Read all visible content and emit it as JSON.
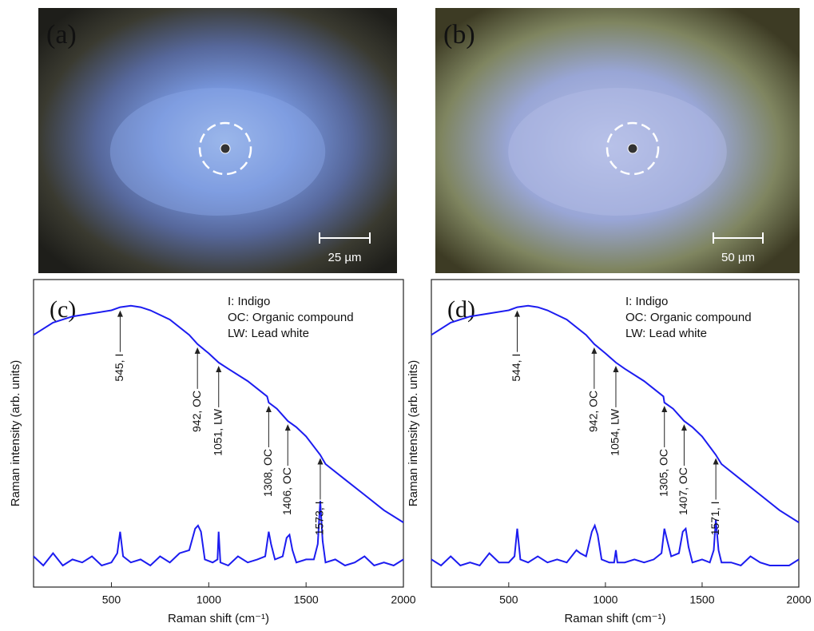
{
  "panels": [
    {
      "label": "(a)",
      "scale_bar": "25 µm"
    },
    {
      "label": "(b)",
      "scale_bar": "50 µm"
    }
  ],
  "chart_data": [
    {
      "type": "line",
      "label": "(c)",
      "xlabel": "Raman shift (cm⁻¹)",
      "ylabel": "Raman intensity (arb. units)",
      "xlim": [
        100,
        2000
      ],
      "xticks": [
        500,
        1000,
        1500,
        2000
      ],
      "ylim": [
        0,
        100
      ],
      "legend_text": [
        "I: Indigo",
        "OC: Organic compound",
        "LW: Lead white"
      ],
      "annotations": [
        {
          "text": "545, I",
          "x": 545,
          "y": 91
        },
        {
          "text": "942, OC",
          "x": 942,
          "y": 79
        },
        {
          "text": "1051, LW",
          "x": 1051,
          "y": 73
        },
        {
          "text": "1308, OC",
          "x": 1308,
          "y": 60
        },
        {
          "text": "1406, OC",
          "x": 1406,
          "y": 54
        },
        {
          "text": "1573, I",
          "x": 1573,
          "y": 43
        }
      ],
      "series": [
        {
          "color": "#1c1cf0",
          "x": [
            100,
            200,
            300,
            400,
            500,
            545,
            600,
            650,
            700,
            800,
            900,
            942,
            1000,
            1051,
            1100,
            1200,
            1300,
            1308,
            1350,
            1406,
            1450,
            1500,
            1573,
            1600,
            1700,
            1800,
            1900,
            2000
          ],
          "values": [
            82,
            86,
            88,
            89,
            90,
            91,
            91.5,
            91,
            90,
            87,
            82,
            79,
            76,
            73,
            71,
            67,
            62,
            60,
            58,
            54,
            52,
            49,
            43,
            40,
            35,
            30,
            25,
            21
          ]
        },
        {
          "color": "#1c1cf0",
          "x": [
            100,
            150,
            200,
            250,
            300,
            350,
            400,
            450,
            500,
            530,
            545,
            560,
            600,
            650,
            700,
            750,
            800,
            850,
            900,
            930,
            945,
            960,
            980,
            1020,
            1045,
            1051,
            1060,
            1100,
            1150,
            1200,
            1250,
            1290,
            1308,
            1320,
            1340,
            1380,
            1400,
            1415,
            1430,
            1450,
            1500,
            1540,
            1560,
            1573,
            1585,
            1600,
            1650,
            1700,
            1750,
            1800,
            1850,
            1900,
            1950,
            2000
          ],
          "values": [
            10,
            7,
            11,
            7,
            9,
            8,
            10,
            7,
            8,
            11,
            18,
            10,
            8,
            9,
            7,
            10,
            8,
            11,
            12,
            19,
            20,
            18,
            9,
            8,
            9,
            18,
            8,
            7,
            10,
            8,
            9,
            10,
            18,
            14,
            9,
            10,
            16,
            17,
            12,
            8,
            9,
            9,
            14,
            28,
            15,
            8,
            9,
            7,
            8,
            10,
            7,
            8,
            7,
            9
          ]
        }
      ]
    },
    {
      "type": "line",
      "label": "(d)",
      "xlabel": "Raman shift (cm⁻¹)",
      "ylabel": "Raman intensity (arb. units)",
      "xlim": [
        100,
        2000
      ],
      "xticks": [
        500,
        1000,
        1500,
        2000
      ],
      "ylim": [
        0,
        100
      ],
      "legend_text": [
        "I: Indigo",
        "OC: Organic compound",
        "LW: Lead white"
      ],
      "annotations": [
        {
          "text": "544, I",
          "x": 544,
          "y": 91
        },
        {
          "text": "942, OC",
          "x": 942,
          "y": 79
        },
        {
          "text": "1054, LW",
          "x": 1054,
          "y": 73
        },
        {
          "text": "1305, OC",
          "x": 1305,
          "y": 60
        },
        {
          "text": "1407, OC",
          "x": 1407,
          "y": 54
        },
        {
          "text": "1571, I",
          "x": 1571,
          "y": 43
        }
      ],
      "series": [
        {
          "color": "#1c1cf0",
          "x": [
            100,
            200,
            300,
            400,
            500,
            544,
            600,
            650,
            700,
            800,
            900,
            942,
            1000,
            1054,
            1100,
            1200,
            1300,
            1305,
            1350,
            1407,
            1450,
            1500,
            1571,
            1600,
            1700,
            1800,
            1900,
            2000
          ],
          "values": [
            82,
            86,
            88,
            89,
            90,
            91,
            91.5,
            91,
            90,
            87,
            82,
            79,
            76,
            73,
            71,
            67,
            62,
            60,
            58,
            54,
            52,
            49,
            43,
            40,
            35,
            30,
            25,
            21
          ]
        },
        {
          "color": "#1c1cf0",
          "x": [
            100,
            150,
            200,
            250,
            300,
            350,
            400,
            450,
            500,
            530,
            544,
            560,
            600,
            650,
            700,
            750,
            800,
            850,
            870,
            900,
            930,
            945,
            960,
            980,
            1020,
            1045,
            1054,
            1062,
            1100,
            1150,
            1200,
            1250,
            1290,
            1305,
            1320,
            1340,
            1380,
            1400,
            1415,
            1430,
            1450,
            1500,
            1540,
            1560,
            1571,
            1585,
            1600,
            1650,
            1700,
            1750,
            1800,
            1850,
            1900,
            1950,
            2000
          ],
          "values": [
            9,
            7,
            10,
            7,
            8,
            7,
            11,
            8,
            8,
            10,
            19,
            9,
            8,
            10,
            8,
            9,
            8,
            12,
            11,
            10,
            18,
            20,
            17,
            9,
            8,
            8,
            12,
            8,
            8,
            9,
            8,
            9,
            11,
            19,
            15,
            10,
            11,
            18,
            19,
            13,
            8,
            9,
            8,
            12,
            22,
            12,
            8,
            8,
            7,
            10,
            8,
            7,
            7,
            7,
            9
          ]
        }
      ]
    }
  ]
}
